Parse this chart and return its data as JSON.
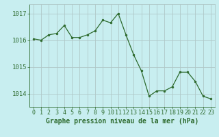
{
  "x": [
    0,
    1,
    2,
    3,
    4,
    5,
    6,
    7,
    8,
    9,
    10,
    11,
    12,
    13,
    14,
    15,
    16,
    17,
    18,
    19,
    20,
    21,
    22,
    23
  ],
  "y": [
    1016.05,
    1016.0,
    1016.2,
    1016.25,
    1016.55,
    1016.1,
    1016.1,
    1016.2,
    1016.35,
    1016.75,
    1016.65,
    1017.0,
    1016.2,
    1015.45,
    1014.85,
    1013.9,
    1014.1,
    1014.1,
    1014.25,
    1014.8,
    1014.8,
    1014.45,
    1013.9,
    1013.8
  ],
  "line_color": "#2d6a2d",
  "marker_color": "#2d6a2d",
  "bg_color": "#c8eef0",
  "grid_color": "#b0c8c8",
  "title": "Graphe pression niveau de la mer (hPa)",
  "ylabel_ticks": [
    1014,
    1015,
    1016,
    1017
  ],
  "xlim": [
    -0.5,
    23.5
  ],
  "ylim": [
    1013.5,
    1017.35
  ],
  "title_color": "#2d6a2d",
  "title_fontsize": 7.0,
  "tick_fontsize": 6.0,
  "ytick_fontsize": 6.5
}
